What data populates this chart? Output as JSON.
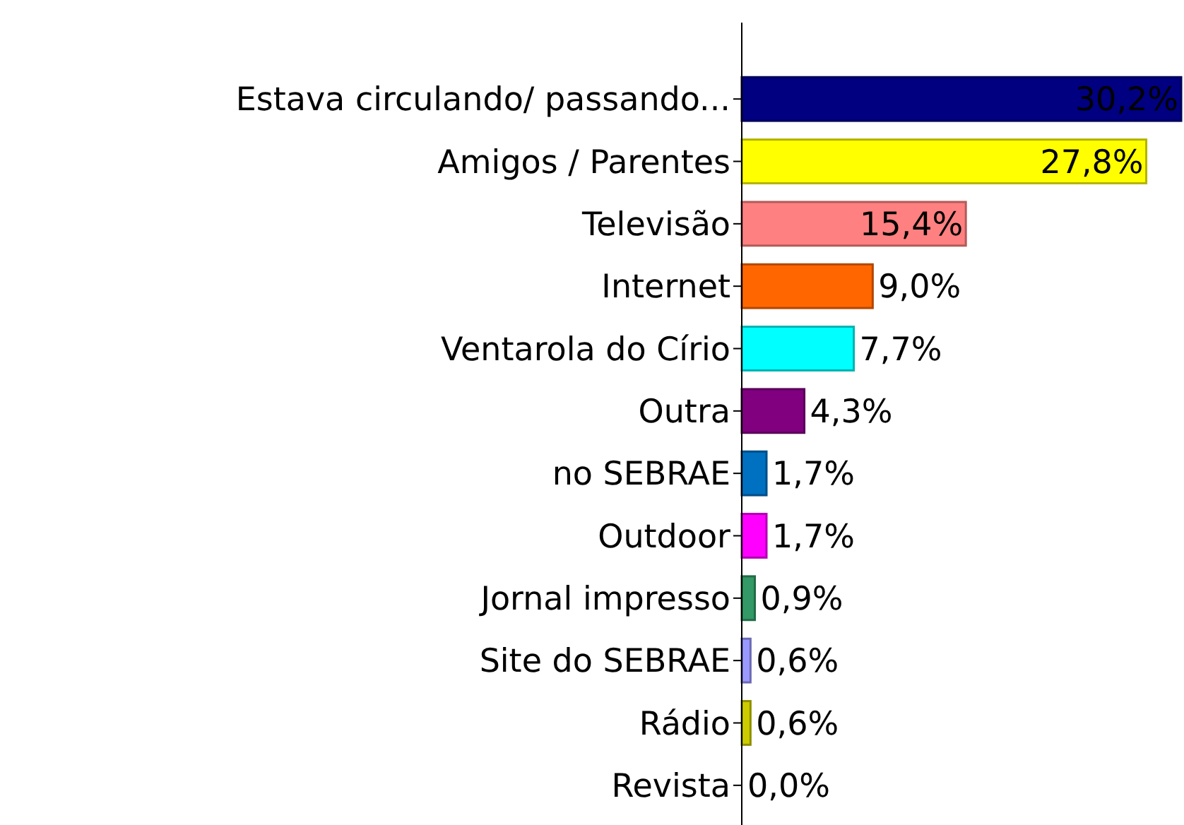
{
  "chart_data": {
    "type": "bar",
    "orientation": "horizontal",
    "categories": [
      "Estava circulando/ passando...",
      "Amigos / Parentes",
      "Televisão",
      "Internet",
      "Ventarola do Círio",
      "Outra",
      "no SEBRAE",
      "Outdoor",
      "Jornal impresso",
      "Site do SEBRAE",
      "Rádio",
      "Revista"
    ],
    "values": [
      30.2,
      27.8,
      15.4,
      9.0,
      7.7,
      4.3,
      1.7,
      1.7,
      0.9,
      0.6,
      0.6,
      0.0
    ],
    "colors": [
      "#000080",
      "#ffff00",
      "#ff8080",
      "#ff6600",
      "#00ffff",
      "#800080",
      "#0070c0",
      "#ff00ff",
      "#339966",
      "#9999ff",
      "#cccc00",
      "#808080"
    ],
    "value_labels": [
      "30,2%",
      "27,8%",
      "15,4%",
      "9,0%",
      "7,7%",
      "4,3%",
      "1,7%",
      "1,7%",
      "0,9%",
      "0,6%",
      "0,6%",
      "0,0%"
    ]
  }
}
